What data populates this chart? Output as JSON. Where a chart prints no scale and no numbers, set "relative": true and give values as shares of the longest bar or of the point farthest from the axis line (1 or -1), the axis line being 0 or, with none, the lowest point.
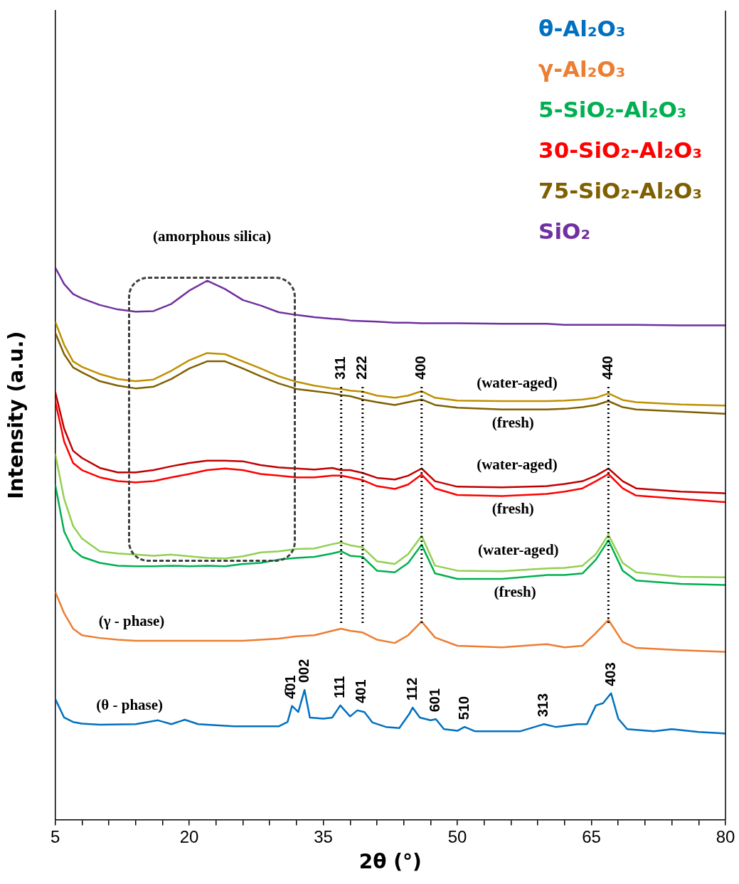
{
  "chart_data": {
    "type": "line",
    "relative": true,
    "xlabel": "2θ (°)",
    "ylabel": "Intensity (a.u.)",
    "xlim": [
      5,
      80
    ],
    "xticks": [
      5,
      {
        "value": 8,
        "label": null
      },
      {
        "value": 11,
        "label": null
      },
      {
        "value": 14,
        "label": null
      },
      {
        "value": 17,
        "label": null
      },
      20,
      {
        "value": 23,
        "label": null
      },
      {
        "value": 26,
        "label": null
      },
      {
        "value": 29,
        "label": null
      },
      {
        "value": 32,
        "label": null
      },
      35,
      {
        "value": 38,
        "label": null
      },
      {
        "value": 41,
        "label": null
      },
      {
        "value": 44,
        "label": null
      },
      {
        "value": 47,
        "label": null
      },
      50,
      {
        "value": 53,
        "label": null
      },
      {
        "value": 56,
        "label": null
      },
      {
        "value": 59,
        "label": null
      },
      {
        "value": 62,
        "label": null
      },
      65,
      {
        "value": 68,
        "label": null
      },
      {
        "value": 71,
        "label": null
      },
      {
        "value": 74,
        "label": null
      },
      {
        "value": 77,
        "label": null
      },
      80
    ],
    "x": [
      5,
      6,
      7,
      8,
      10,
      12,
      14,
      16,
      18,
      20,
      22,
      24,
      26,
      28,
      30,
      32,
      34,
      36,
      37,
      38,
      39.4,
      41,
      43,
      44.5,
      46,
      47.5,
      50,
      55,
      60,
      62,
      64,
      65.5,
      66.9,
      68.5,
      70,
      75,
      80
    ],
    "marker": "none",
    "legend": "top right",
    "series": [
      {
        "name": "θ-Al₂O₃",
        "color": "#0070c0",
        "x": [
          5,
          6,
          7,
          8,
          10,
          14,
          16.5,
          18,
          19.5,
          21,
          25,
          30,
          31,
          31.5,
          32.2,
          32.9,
          33.5,
          35,
          36,
          36.9,
          38,
          38.8,
          39.6,
          40.5,
          42,
          43.5,
          44.6,
          45,
          45.8,
          47,
          47.6,
          48.5,
          50,
          50.8,
          52,
          57,
          59.7,
          61,
          63.5,
          64.5,
          65.5,
          66.3,
          67.2,
          68,
          69,
          72,
          74,
          77,
          80
        ],
        "values": [
          0.219,
          0.185,
          0.177,
          0.174,
          0.172,
          0.173,
          0.18,
          0.173,
          0.181,
          0.173,
          0.169,
          0.169,
          0.177,
          0.206,
          0.195,
          0.235,
          0.185,
          0.183,
          0.185,
          0.207,
          0.187,
          0.198,
          0.195,
          0.176,
          0.168,
          0.166,
          0.191,
          0.203,
          0.185,
          0.18,
          0.182,
          0.164,
          0.161,
          0.168,
          0.16,
          0.16,
          0.173,
          0.168,
          0.173,
          0.173,
          0.207,
          0.211,
          0.229,
          0.183,
          0.164,
          0.16,
          0.164,
          0.159,
          0.156
        ]
      },
      {
        "name": "γ-Al₂O₃",
        "color": "#ed7d31",
        "values": [
          0.413,
          0.374,
          0.346,
          0.334,
          0.329,
          0.326,
          0.324,
          0.324,
          0.324,
          0.324,
          0.324,
          0.324,
          0.324,
          0.326,
          0.328,
          0.332,
          0.334,
          0.342,
          0.346,
          0.342,
          0.339,
          0.326,
          0.32,
          0.334,
          0.359,
          0.33,
          0.315,
          0.312,
          0.318,
          0.312,
          0.315,
          0.338,
          0.362,
          0.322,
          0.311,
          0.307,
          0.304
        ]
      },
      {
        "name": "5-SiO₂-Al₂O₃",
        "color": "#00b050",
        "values": [
          0.607,
          0.522,
          0.489,
          0.476,
          0.465,
          0.46,
          0.459,
          0.459,
          0.46,
          0.459,
          0.46,
          0.459,
          0.463,
          0.465,
          0.471,
          0.474,
          0.476,
          0.482,
          0.486,
          0.478,
          0.476,
          0.451,
          0.448,
          0.465,
          0.498,
          0.446,
          0.436,
          0.436,
          0.443,
          0.443,
          0.446,
          0.471,
          0.506,
          0.451,
          0.433,
          0.427,
          0.425
        ]
      },
      {
        "color": "#92d050",
        "values": [
          0.663,
          0.581,
          0.532,
          0.509,
          0.486,
          0.482,
          0.48,
          0.478,
          0.48,
          0.477,
          0.474,
          0.473,
          0.477,
          0.484,
          0.486,
          0.49,
          0.491,
          0.499,
          0.502,
          0.497,
          0.493,
          0.468,
          0.463,
          0.481,
          0.514,
          0.46,
          0.451,
          0.45,
          0.455,
          0.456,
          0.46,
          0.481,
          0.516,
          0.465,
          0.448,
          0.44,
          0.439
        ]
      },
      {
        "name": "30-SiO₂-Al₂O₃",
        "color": "#ff0000",
        "values": [
          0.758,
          0.685,
          0.646,
          0.633,
          0.62,
          0.613,
          0.611,
          0.613,
          0.62,
          0.626,
          0.633,
          0.636,
          0.633,
          0.626,
          0.623,
          0.62,
          0.62,
          0.623,
          0.623,
          0.62,
          0.615,
          0.604,
          0.599,
          0.607,
          0.625,
          0.6,
          0.588,
          0.586,
          0.59,
          0.594,
          0.6,
          0.613,
          0.626,
          0.6,
          0.587,
          0.581,
          0.575
        ]
      },
      {
        "color": "#c00000",
        "values": [
          0.775,
          0.708,
          0.668,
          0.655,
          0.637,
          0.629,
          0.629,
          0.633,
          0.64,
          0.646,
          0.65,
          0.65,
          0.649,
          0.642,
          0.638,
          0.636,
          0.634,
          0.637,
          0.633,
          0.633,
          0.628,
          0.619,
          0.616,
          0.623,
          0.636,
          0.613,
          0.603,
          0.602,
          0.604,
          0.608,
          0.613,
          0.623,
          0.636,
          0.613,
          0.6,
          0.594,
          0.591
        ]
      },
      {
        "name": "75-SiO₂-Al₂O₃",
        "color": "#7f6000",
        "values": [
          0.882,
          0.843,
          0.819,
          0.81,
          0.794,
          0.786,
          0.781,
          0.784,
          0.798,
          0.817,
          0.83,
          0.83,
          0.817,
          0.803,
          0.79,
          0.78,
          0.776,
          0.772,
          0.769,
          0.767,
          0.761,
          0.756,
          0.751,
          0.756,
          0.761,
          0.751,
          0.746,
          0.743,
          0.743,
          0.744,
          0.747,
          0.751,
          0.758,
          0.747,
          0.743,
          0.739,
          0.735
        ]
      },
      {
        "color": "#bf9000",
        "values": [
          0.902,
          0.86,
          0.83,
          0.82,
          0.807,
          0.798,
          0.794,
          0.797,
          0.813,
          0.832,
          0.845,
          0.843,
          0.83,
          0.817,
          0.803,
          0.793,
          0.786,
          0.781,
          0.78,
          0.777,
          0.775,
          0.768,
          0.764,
          0.768,
          0.776,
          0.764,
          0.759,
          0.758,
          0.758,
          0.759,
          0.761,
          0.764,
          0.772,
          0.76,
          0.756,
          0.752,
          0.75
        ]
      },
      {
        "name": "SiO₂",
        "color": "#7030a0",
        "values": [
          1.0,
          0.97,
          0.952,
          0.944,
          0.932,
          0.924,
          0.92,
          0.921,
          0.934,
          0.958,
          0.976,
          0.961,
          0.941,
          0.931,
          0.919,
          0.914,
          0.91,
          0.907,
          0.906,
          0.904,
          0.903,
          0.902,
          0.9,
          0.9,
          0.899,
          0.899,
          0.899,
          0.898,
          0.898,
          0.896,
          0.896,
          0.896,
          0.896,
          0.896,
          0.896,
          0.895,
          0.895
        ]
      }
    ],
    "ref_lines": [
      {
        "axis": "x",
        "value": 37.0,
        "line_style": "dotted"
      },
      {
        "axis": "x",
        "value": 39.4,
        "line_style": "dotted"
      },
      {
        "axis": "x",
        "value": 46.0,
        "line_style": "dotted"
      },
      {
        "axis": "x",
        "value": 66.9,
        "line_style": "dotted"
      }
    ],
    "annotations": [
      "311",
      "222",
      "400",
      "440",
      {
        "text": "4̄01",
        "x": 31.4,
        "y": 0.206
      },
      {
        "text": "002",
        "x": 32.9,
        "y": 0.235
      },
      {
        "text": "111",
        "x": 36.9,
        "y": 0.207
      },
      {
        "text": "401",
        "x": 39.3,
        "y": 0.198
      },
      {
        "text": "112",
        "x": 45.0,
        "y": 0.203
      },
      {
        "text": "601",
        "x": 47.6,
        "y": 0.182
      },
      {
        "text": "510",
        "x": 50.8,
        "y": 0.168
      },
      {
        "text": "313",
        "x": 59.7,
        "y": 0.173
      },
      {
        "text": "403",
        "x": 67.2,
        "y": 0.229
      },
      "(amorphous silica)",
      "(water-aged)",
      "(fresh)",
      "(water-aged)",
      "(fresh)",
      "(water-aged)",
      "(fresh)",
      "(γ - phase)",
      "(θ - phase)"
    ]
  }
}
